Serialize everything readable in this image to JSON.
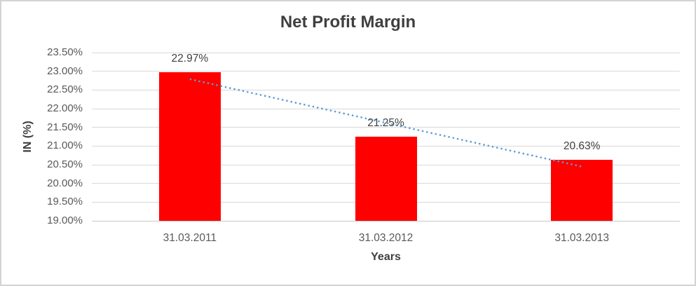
{
  "chart_data": {
    "type": "bar",
    "title": "Net Profit Margin",
    "xlabel": "Years",
    "ylabel": "IN (%)",
    "categories": [
      "31.03.2011",
      "31.03.2012",
      "31.03.2013"
    ],
    "values": [
      22.97,
      21.25,
      20.63
    ],
    "data_labels": [
      "22.97%",
      "21.25%",
      "20.63%"
    ],
    "ylim": [
      19.0,
      23.5
    ],
    "ytick_step": 0.5,
    "ytick_labels": [
      "23.50%",
      "23.00%",
      "22.50%",
      "22.00%",
      "21.50%",
      "21.00%",
      "20.50%",
      "20.00%",
      "19.50%",
      "19.00%"
    ],
    "grid": "horizontal",
    "legend": "none",
    "bar_color": "#FF0000",
    "trendline": {
      "type": "linear",
      "style": "dotted",
      "color": "#5B9BD5",
      "start": {
        "category_index": 0,
        "value": 22.79
      },
      "end": {
        "category_index": 2,
        "value": 20.45
      }
    },
    "colors": {
      "grid": "#D9D9D9",
      "axis_line": "#C9C9C9",
      "tick_text": "#595959",
      "title_text": "#3F3F3F",
      "chart_border": "#D3D3D3",
      "background": "#FFFFFF"
    }
  }
}
